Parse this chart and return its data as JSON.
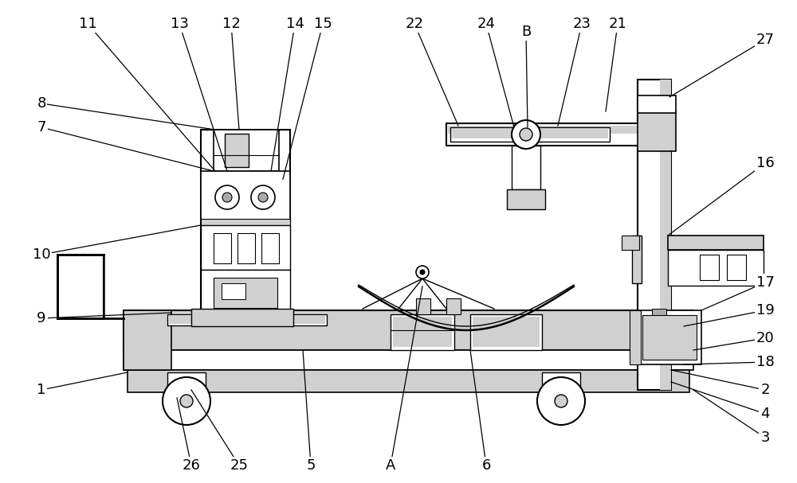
{
  "bg_color": "#ffffff",
  "lc": "#000000",
  "lg": "#d0d0d0",
  "mg": "#aaaaaa",
  "figsize": [
    10.0,
    6.07
  ],
  "dpi": 100
}
